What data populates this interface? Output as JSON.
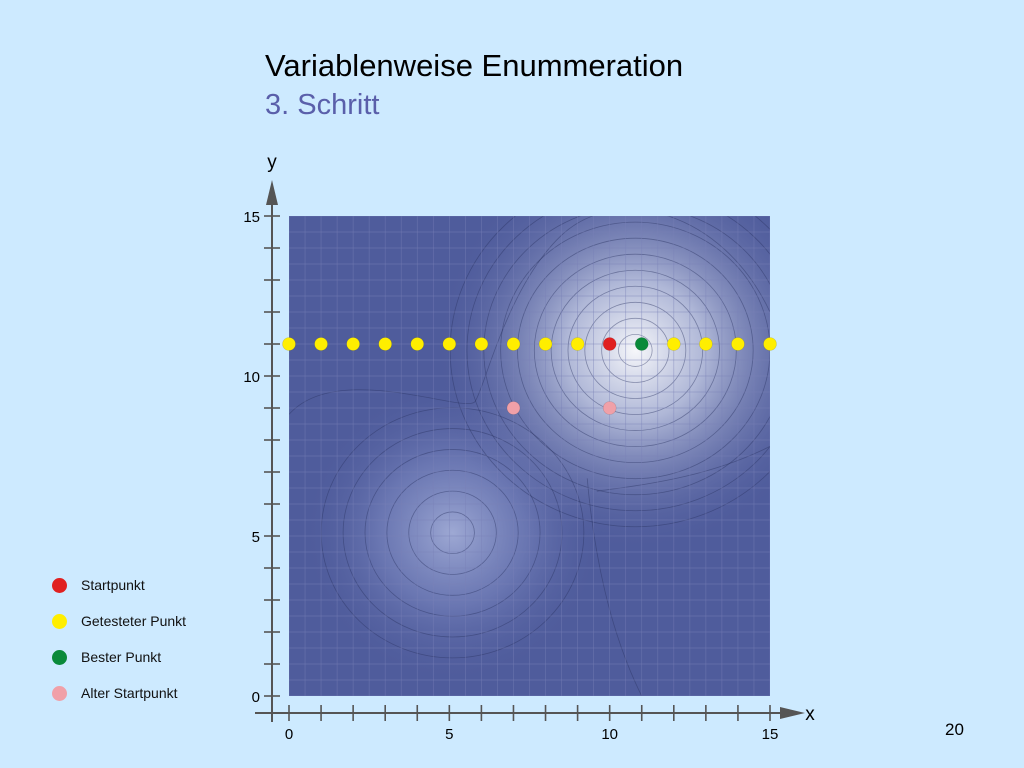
{
  "slide": {
    "title": "Variablenweise Enummeration",
    "subtitle": "3. Schritt",
    "page_number": "20"
  },
  "chart_data": {
    "type": "scatter",
    "xlabel": "x",
    "ylabel": "y",
    "xlim": [
      0,
      15
    ],
    "ylim": [
      0,
      15
    ],
    "x_ticks": [
      0,
      5,
      10,
      15
    ],
    "y_ticks": [
      0,
      5,
      10,
      15
    ],
    "grid": true,
    "background": "contour plot of a function with two maxima",
    "maxima": [
      {
        "x": 5.1,
        "y": 5.1,
        "strength": 0.55
      },
      {
        "x": 10.8,
        "y": 10.8,
        "strength": 1.0
      }
    ],
    "series": [
      {
        "name": "Getesteter Punkt",
        "color": "#ffee00",
        "points": [
          [
            0,
            11
          ],
          [
            1,
            11
          ],
          [
            2,
            11
          ],
          [
            3,
            11
          ],
          [
            4,
            11
          ],
          [
            5,
            11
          ],
          [
            6,
            11
          ],
          [
            7,
            11
          ],
          [
            8,
            11
          ],
          [
            9,
            11
          ],
          [
            12,
            11
          ],
          [
            13,
            11
          ],
          [
            14,
            11
          ],
          [
            15,
            11
          ]
        ]
      },
      {
        "name": "Startpunkt",
        "color": "#e02020",
        "points": [
          [
            10,
            11
          ]
        ]
      },
      {
        "name": "Bester Punkt",
        "color": "#0a8a3a",
        "points": [
          [
            11,
            11
          ]
        ]
      },
      {
        "name": "Alter Startpunkt",
        "color": "#f0a0a8",
        "points": [
          [
            7,
            9
          ],
          [
            10,
            9
          ]
        ]
      }
    ],
    "legend": {
      "position": "left-bottom",
      "items": [
        {
          "label": "Startpunkt",
          "color": "#e02020"
        },
        {
          "label": "Getesteter Punkt",
          "color": "#ffee00"
        },
        {
          "label": "Bester Punkt",
          "color": "#0a8a3a"
        },
        {
          "label": "Alter Startpunkt",
          "color": "#f0a0a8"
        }
      ]
    }
  }
}
